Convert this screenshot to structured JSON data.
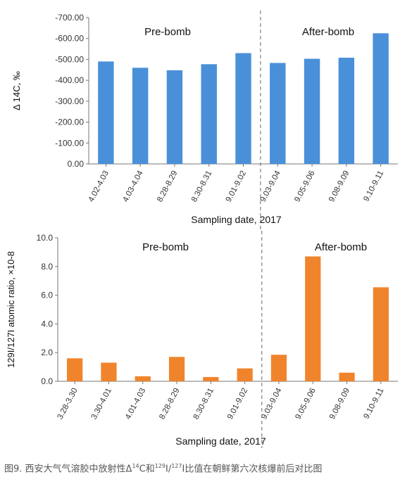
{
  "chart_data": [
    {
      "type": "bar",
      "categories": [
        "4.02-4.03",
        "4.03-4.04",
        "8.28-8.29",
        "8.30-8.31",
        "9.01-9.02",
        "9.03-9.04",
        "9.05-9.06",
        "9.08-9.09",
        "9.10-9.11"
      ],
      "values": [
        -490,
        -460,
        -448,
        -477,
        -530,
        -483,
        -503,
        -508,
        -625
      ],
      "ylabel": "Δ 14C, ‰",
      "ylabel_sup": "14",
      "xlabel": "Sampling date, 2017",
      "ylim": [
        0,
        -700
      ],
      "yticks": [
        0,
        -100,
        -200,
        -300,
        -400,
        -500,
        -600,
        -700
      ],
      "ytick_labels": [
        "0.00",
        "-100.00",
        "-200.00",
        "-300.00",
        "-400.00",
        "-500.00",
        "-600.00",
        "-700.00"
      ],
      "divider_after_index": 4,
      "annotations": [
        "Pre-bomb",
        "After-bomb"
      ],
      "color": "#4a90d9",
      "grid": false
    },
    {
      "type": "bar",
      "categories": [
        "3.28-3.30",
        "3.30-4.01",
        "4.01-4.03",
        "8.28-8.29",
        "8.30-8.31",
        "9.01-9.02",
        "9.03-9.04",
        "9.05-9.06",
        "9.08-9.09",
        "9.10-9.11"
      ],
      "values": [
        1.6,
        1.3,
        0.35,
        1.7,
        0.3,
        0.9,
        1.85,
        8.7,
        0.6,
        6.55
      ],
      "ylabel": "129I/127I atomic ratio, ×10-8",
      "xlabel": "Sampling date, 2017",
      "ylim": [
        0,
        10
      ],
      "yticks": [
        0,
        2,
        4,
        6,
        8,
        10
      ],
      "ytick_labels": [
        "0.0",
        "2.0",
        "4.0",
        "6.0",
        "8.0",
        "10.0"
      ],
      "divider_after_index": 5,
      "annotations": [
        "Pre-bomb",
        "After-bomb"
      ],
      "color": "#f0842c",
      "grid": false
    }
  ],
  "caption": {
    "prefix": "图9.  西安大气气溶胶中放射性Δ",
    "sup1": "14",
    "mid1": "C和",
    "sup2": "129",
    "mid2": "I/",
    "sup3": "127",
    "suffix": "I比值在朝鲜第六次核爆前后对比图"
  }
}
